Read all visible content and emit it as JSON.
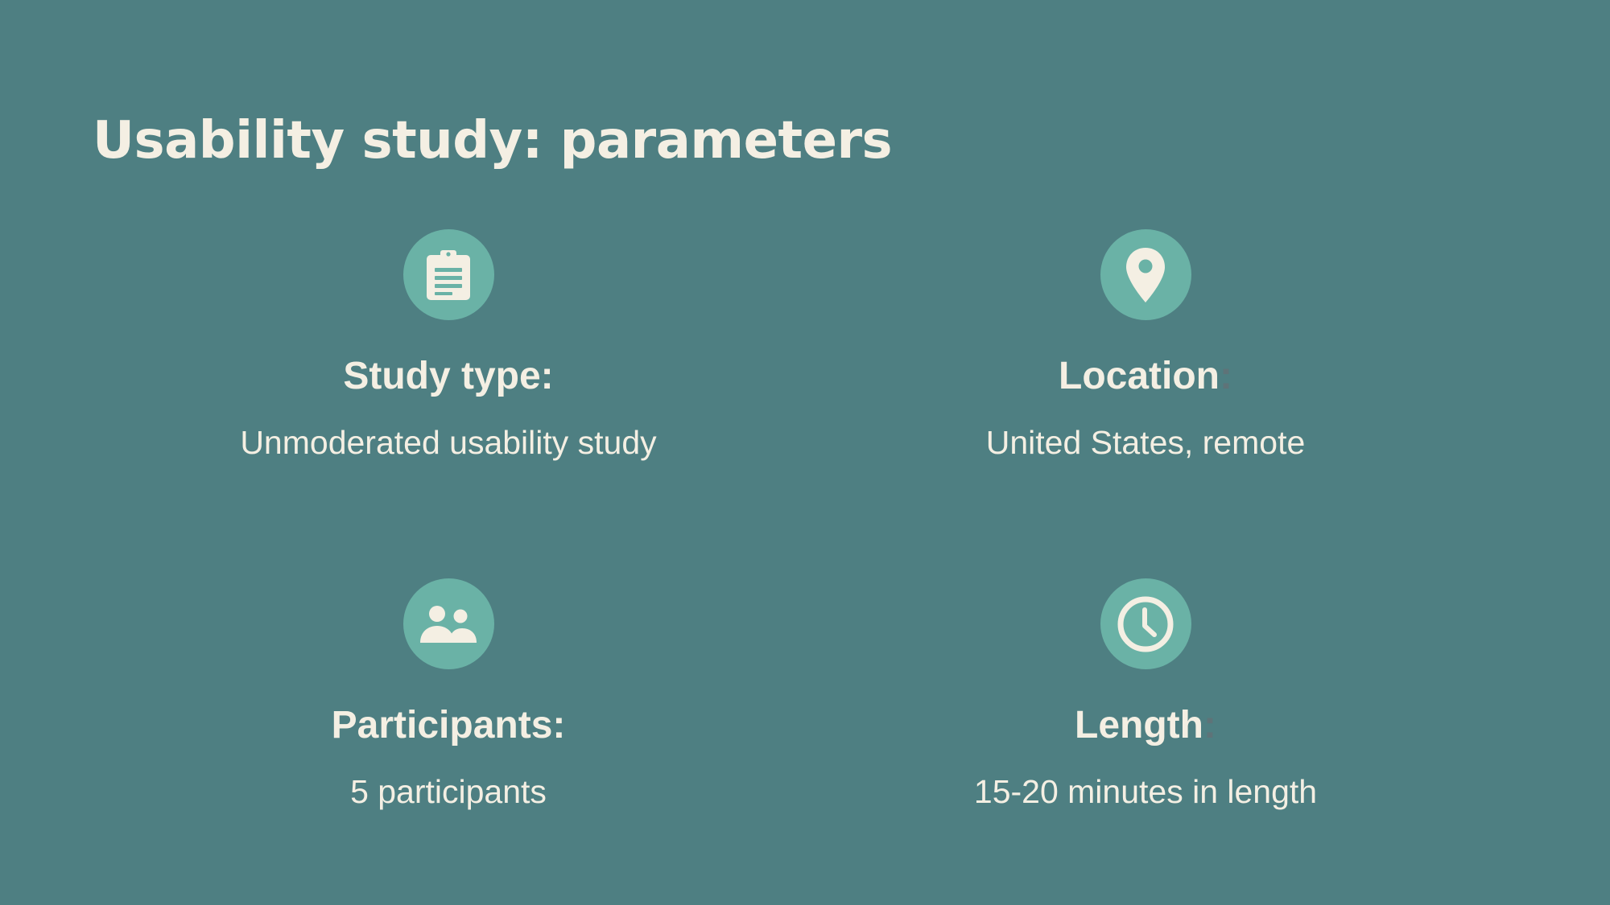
{
  "slide": {
    "title": "Usability study: parameters",
    "background_color": "#4e7f82",
    "icon_circle_color": "#6ab2a6"
  },
  "parameters": [
    {
      "icon": "clipboard-icon",
      "label": "Study type:",
      "colon": "",
      "value": "Unmoderated usability study"
    },
    {
      "icon": "location-pin-icon",
      "label": "Location",
      "colon": ":",
      "value": "United States, remote"
    },
    {
      "icon": "people-icon",
      "label": "Participants:",
      "colon": "",
      "value": "5 participants"
    },
    {
      "icon": "clock-icon",
      "label": "Length",
      "colon": ":",
      "value": "15-20 minutes in length"
    }
  ]
}
